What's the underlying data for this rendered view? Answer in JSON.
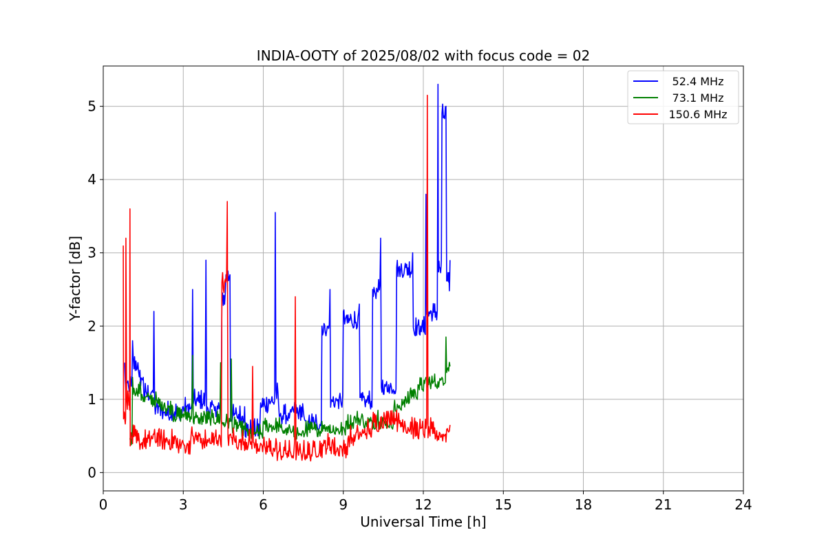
{
  "chart_data": {
    "type": "line",
    "title": "INDIA-OOTY of 2025/08/02 with focus code = 02",
    "xlabel": "Universal Time [h]",
    "ylabel": "Y-factor [dB]",
    "xlim": [
      0,
      24
    ],
    "ylim": [
      -0.25,
      5.55
    ],
    "xticks": [
      0,
      3,
      6,
      9,
      12,
      15,
      18,
      21,
      24
    ],
    "yticks": [
      0,
      1,
      2,
      3,
      4,
      5
    ],
    "xtick_labels": [
      "0",
      "3",
      "6",
      "9",
      "12",
      "15",
      "18",
      "21",
      "24"
    ],
    "ytick_labels": [
      "0",
      "1",
      "2",
      "3",
      "4",
      "5"
    ],
    "grid": true,
    "legend_position": "top-right",
    "series": [
      {
        "name": "52.4 MHz",
        "color": "#0000ff",
        "x": [
          0.8,
          1.0,
          1.1,
          1.3,
          1.5,
          1.8,
          1.9,
          2.2,
          2.6,
          3.0,
          3.35,
          3.5,
          3.85,
          4.2,
          4.45,
          4.6,
          4.75,
          5.0,
          5.3,
          5.6,
          5.9,
          6.2,
          6.45,
          6.55,
          6.8,
          7.1,
          7.5,
          7.8,
          8.2,
          8.5,
          8.8,
          9.0,
          9.3,
          9.6,
          9.9,
          10.1,
          10.4,
          10.7,
          11.0,
          11.3,
          11.6,
          11.9,
          12.1,
          12.3,
          12.55,
          12.6,
          12.7,
          12.85,
          12.95,
          13.0
        ],
        "y": [
          1.5,
          1.2,
          1.8,
          1.5,
          1.3,
          1.1,
          2.2,
          0.9,
          0.85,
          0.9,
          2.5,
          1.0,
          2.9,
          0.9,
          2.4,
          2.7,
          2.7,
          0.8,
          0.9,
          0.6,
          0.95,
          1.0,
          3.55,
          1.1,
          0.8,
          0.9,
          0.85,
          0.7,
          2.0,
          2.5,
          1.0,
          2.2,
          2.1,
          2.3,
          1.0,
          2.5,
          3.2,
          1.2,
          2.8,
          2.8,
          3.0,
          2.0,
          3.8,
          2.2,
          5.3,
          2.8,
          4.9,
          5.0,
          2.6,
          2.9
        ]
      },
      {
        "name": "73.1 MHz",
        "color": "#008000",
        "x": [
          1.0,
          1.1,
          1.4,
          1.7,
          2.0,
          2.3,
          2.6,
          3.0,
          3.35,
          3.5,
          3.8,
          4.1,
          4.4,
          4.6,
          4.8,
          5.1,
          5.4,
          5.7,
          6.0,
          6.3,
          6.6,
          7.0,
          7.3,
          7.6,
          7.9,
          8.2,
          8.5,
          8.8,
          9.1,
          9.4,
          9.7,
          10.0,
          10.3,
          10.6,
          10.9,
          11.2,
          11.5,
          11.8,
          12.1,
          12.4,
          12.7,
          12.85,
          13.0
        ],
        "y": [
          0.45,
          1.3,
          1.15,
          1.05,
          1.0,
          0.95,
          0.9,
          0.8,
          1.6,
          0.75,
          0.8,
          0.75,
          1.5,
          0.7,
          1.55,
          0.65,
          0.6,
          0.55,
          0.7,
          0.65,
          0.75,
          0.6,
          0.55,
          0.7,
          0.6,
          0.7,
          0.65,
          0.6,
          0.7,
          0.75,
          0.8,
          0.7,
          0.85,
          0.7,
          0.9,
          1.0,
          1.1,
          1.2,
          1.3,
          1.25,
          1.3,
          1.85,
          1.45
        ]
      },
      {
        "name": "150.6 MHz",
        "color": "#ff0000",
        "x": [
          0.75,
          0.8,
          0.85,
          0.95,
          1.0,
          1.05,
          1.2,
          1.5,
          1.8,
          2.1,
          2.4,
          2.7,
          3.0,
          3.3,
          3.6,
          3.9,
          4.2,
          4.45,
          4.65,
          4.9,
          5.2,
          5.6,
          5.9,
          6.2,
          6.5,
          6.8,
          7.2,
          7.5,
          7.9,
          8.3,
          8.6,
          8.9,
          9.2,
          9.5,
          9.8,
          10.1,
          10.4,
          10.7,
          11.0,
          11.3,
          11.6,
          11.9,
          12.15,
          12.3,
          12.6,
          12.9,
          13.0
        ],
        "y": [
          3.1,
          0.8,
          3.2,
          1.0,
          3.6,
          0.5,
          0.5,
          0.45,
          0.5,
          0.6,
          0.45,
          0.5,
          0.4,
          0.55,
          0.5,
          0.45,
          0.5,
          2.6,
          3.7,
          0.5,
          0.45,
          1.45,
          0.4,
          0.35,
          0.4,
          0.3,
          2.4,
          0.3,
          0.35,
          0.4,
          0.45,
          0.35,
          0.5,
          0.55,
          0.6,
          0.7,
          0.75,
          0.8,
          0.85,
          0.7,
          0.65,
          0.6,
          5.15,
          0.6,
          0.55,
          0.6,
          0.65
        ]
      }
    ]
  }
}
